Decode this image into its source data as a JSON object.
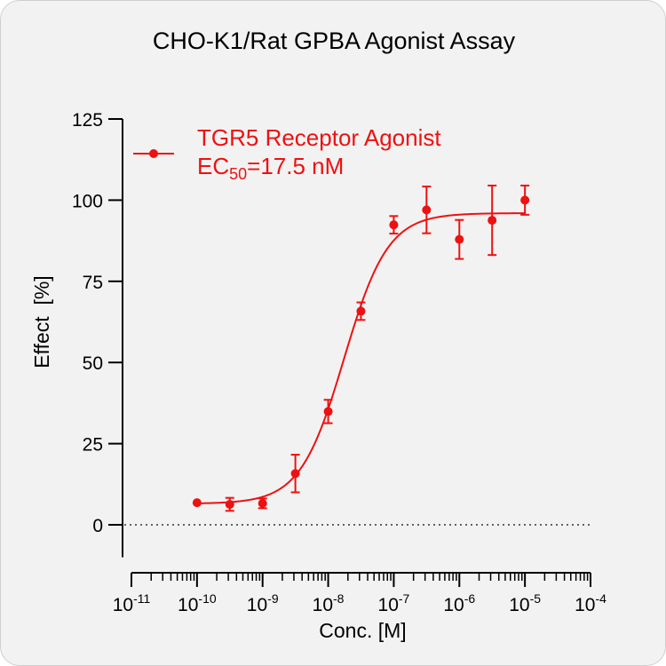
{
  "chart_data": {
    "type": "scatter",
    "title": "CHO-K1/Rat GPBA Agonist Assay",
    "xlabel": "Conc. [M]",
    "ylabel": "Effect  [%]",
    "x_scale": "log",
    "xlim": [
      1e-11,
      0.0001
    ],
    "ylim": [
      -10,
      125
    ],
    "y_ticks": [
      0,
      25,
      50,
      75,
      100,
      125
    ],
    "y_tick_labels": [
      "0",
      "25",
      "50",
      "75",
      "100",
      "125"
    ],
    "x_tick_labels": [
      {
        "base": "10",
        "exp": "-11"
      },
      {
        "base": "10",
        "exp": "-10"
      },
      {
        "base": "10",
        "exp": "-9"
      },
      {
        "base": "10",
        "exp": "-8"
      },
      {
        "base": "10",
        "exp": "-7"
      },
      {
        "base": "10",
        "exp": "-6"
      },
      {
        "base": "10",
        "exp": "-5"
      },
      {
        "base": "10",
        "exp": "-4"
      }
    ],
    "zero_line": "dotted",
    "legend_position": "top-left",
    "series": [
      {
        "name": "TGR5 Receptor Agonist",
        "color": "#ee1111",
        "x": [
          1e-10,
          3.16e-10,
          1e-09,
          3.16e-09,
          1e-08,
          3.16e-08,
          1e-07,
          3.16e-07,
          1e-06,
          3.16e-06,
          1e-05
        ],
        "y": [
          6.8,
          6.3,
          6.6,
          15.8,
          34.9,
          65.8,
          92.4,
          97.0,
          87.9,
          93.8,
          100.0
        ],
        "error": [
          0.0,
          2.0,
          1.5,
          5.8,
          3.6,
          2.7,
          2.7,
          7.2,
          6.0,
          10.7,
          4.5
        ],
        "fit": {
          "model": "four-parameter logistic",
          "bottom": 6.5,
          "top": 96.0,
          "ec50": 1.75e-08,
          "hill": 1.3,
          "x_range": [
            1e-10,
            1e-05
          ]
        }
      }
    ],
    "annotation": {
      "prefix": "EC",
      "subscript": "50",
      "suffix": "=17.5 nM"
    }
  }
}
